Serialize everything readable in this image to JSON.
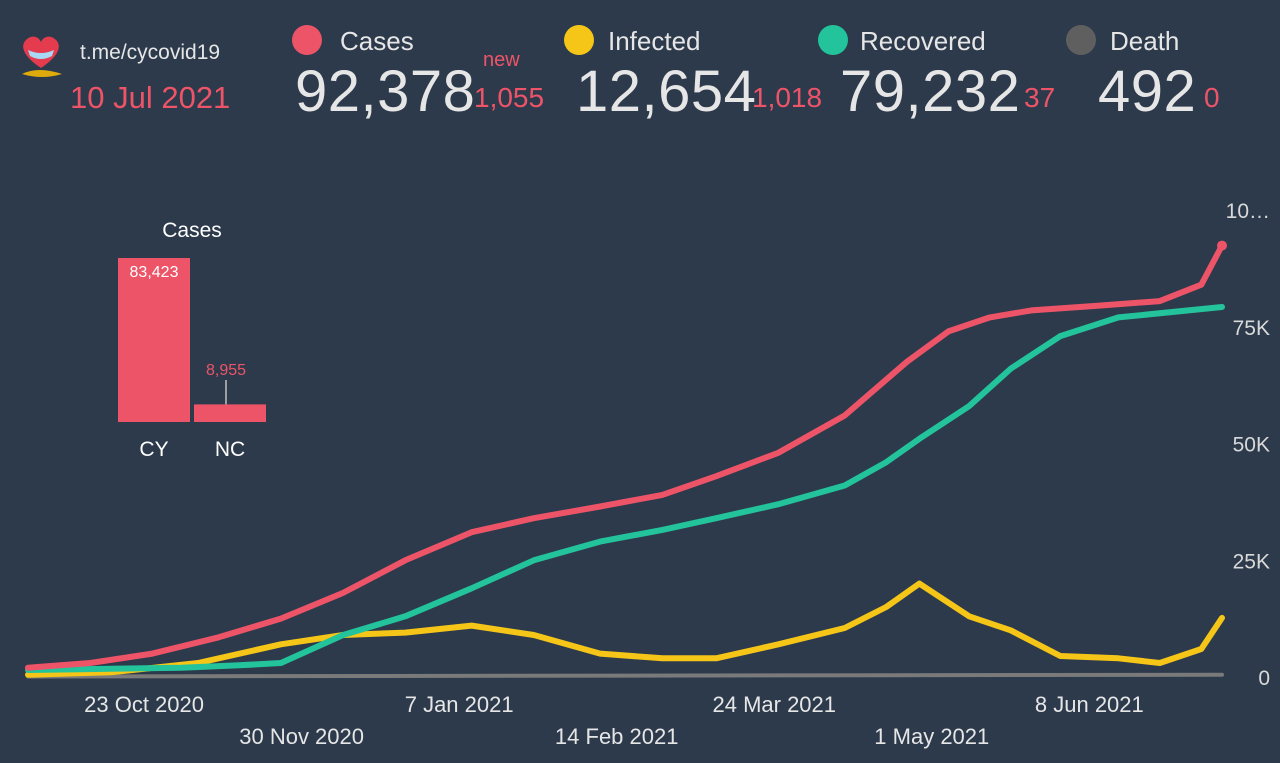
{
  "header": {
    "source": "t.me/cycovid19",
    "date": "10 Jul 2021",
    "new_label": "new",
    "stats": [
      {
        "label": "Cases",
        "value": "92,378",
        "delta": "1,055",
        "color": "#ee5468"
      },
      {
        "label": "Infected",
        "value": "12,654",
        "delta": "1,018",
        "color": "#f5c518"
      },
      {
        "label": "Recovered",
        "value": "79,232",
        "delta": "37",
        "color": "#23c39c"
      },
      {
        "label": "Death",
        "value": "492",
        "delta": "0",
        "color": "#5f5f5f"
      }
    ]
  },
  "chart_data": [
    {
      "type": "line",
      "x_ticks": [
        "23 Oct 2020",
        "30 Nov 2020",
        "7 Jan 2021",
        "14 Feb 2021",
        "24 Mar 2021",
        "1 May 2021",
        "8 Jun 2021"
      ],
      "y_ticks": [
        "10…",
        "75K",
        "50K",
        "25K",
        "0"
      ],
      "ylim": [
        0,
        100000
      ],
      "series": [
        {
          "name": "Cases",
          "color": "#ee5468",
          "x": [
            "2020-09-25",
            "2020-10-10",
            "2020-10-25",
            "2020-11-10",
            "2020-11-25",
            "2020-12-10",
            "2020-12-25",
            "2021-01-10",
            "2021-01-25",
            "2021-02-10",
            "2021-02-25",
            "2021-03-10",
            "2021-03-25",
            "2021-04-10",
            "2021-04-25",
            "2021-05-05",
            "2021-05-15",
            "2021-05-25",
            "2021-06-10",
            "2021-06-25",
            "2021-07-05",
            "2021-07-10"
          ],
          "values": [
            2000,
            3000,
            5000,
            8500,
            12500,
            18000,
            25000,
            31000,
            34000,
            36500,
            39000,
            43000,
            48000,
            56000,
            67500,
            74000,
            77000,
            78500,
            79500,
            80500,
            84000,
            92378
          ]
        },
        {
          "name": "Recovered",
          "color": "#23c39c",
          "x": [
            "2020-09-25",
            "2020-11-01",
            "2020-11-15",
            "2020-11-25",
            "2020-12-10",
            "2020-12-25",
            "2021-01-10",
            "2021-01-25",
            "2021-02-10",
            "2021-02-25",
            "2021-03-10",
            "2021-03-25",
            "2021-04-10",
            "2021-04-20",
            "2021-04-28",
            "2021-05-10",
            "2021-05-20",
            "2021-06-01",
            "2021-06-15",
            "2021-07-10"
          ],
          "values": [
            1500,
            2000,
            2500,
            3000,
            9000,
            13000,
            19000,
            25000,
            29000,
            31500,
            34000,
            37000,
            41000,
            46000,
            51000,
            58000,
            66000,
            73000,
            77000,
            79232
          ]
        },
        {
          "name": "Infected",
          "color": "#f5c518",
          "x": [
            "2020-09-25",
            "2020-10-15",
            "2020-11-05",
            "2020-11-25",
            "2020-12-10",
            "2020-12-25",
            "2021-01-10",
            "2021-01-25",
            "2021-02-10",
            "2021-02-25",
            "2021-03-10",
            "2021-03-25",
            "2021-04-10",
            "2021-04-20",
            "2021-04-28",
            "2021-05-10",
            "2021-05-20",
            "2021-06-01",
            "2021-06-15",
            "2021-06-25",
            "2021-07-05",
            "2021-07-10"
          ],
          "values": [
            500,
            1000,
            3000,
            7000,
            9000,
            9500,
            11000,
            9000,
            5000,
            4000,
            4000,
            7000,
            10500,
            15000,
            20000,
            13000,
            10000,
            4500,
            4000,
            3000,
            6000,
            12654
          ]
        },
        {
          "name": "Death",
          "color": "#7a7a7a",
          "x": [
            "2020-09-25",
            "2021-07-10"
          ],
          "values": [
            100,
            492
          ]
        }
      ]
    },
    {
      "type": "bar",
      "title": "Cases",
      "categories": [
        "CY",
        "NC"
      ],
      "values": [
        83423,
        8955
      ],
      "value_labels": [
        "83,423",
        "8,955"
      ],
      "color": "#ee5468"
    }
  ]
}
